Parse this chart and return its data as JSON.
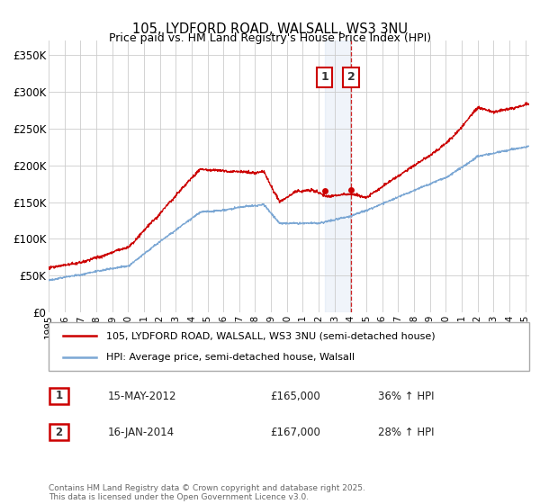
{
  "title": "105, LYDFORD ROAD, WALSALL, WS3 3NU",
  "subtitle": "Price paid vs. HM Land Registry's House Price Index (HPI)",
  "ylabel_ticks": [
    "£0",
    "£50K",
    "£100K",
    "£150K",
    "£200K",
    "£250K",
    "£300K",
    "£350K"
  ],
  "ytick_vals": [
    0,
    50000,
    100000,
    150000,
    200000,
    250000,
    300000,
    350000
  ],
  "ylim": [
    0,
    370000
  ],
  "line1_color": "#cc0000",
  "line2_color": "#7ba7d4",
  "annotation1_label": "1",
  "annotation2_label": "2",
  "legend_line1": "105, LYDFORD ROAD, WALSALL, WS3 3NU (semi-detached house)",
  "legend_line2": "HPI: Average price, semi-detached house, Walsall",
  "table_entries": [
    {
      "label": "1",
      "date": "15-MAY-2012",
      "price": "£165,000",
      "change": "36% ↑ HPI"
    },
    {
      "label": "2",
      "date": "16-JAN-2014",
      "price": "£167,000",
      "change": "28% ↑ HPI"
    }
  ],
  "footer": "Contains HM Land Registry data © Crown copyright and database right 2025.\nThis data is licensed under the Open Government Licence v3.0.",
  "background_color": "#ffffff",
  "grid_color": "#cccccc",
  "sale1_price": 165000,
  "sale2_price": 167000
}
